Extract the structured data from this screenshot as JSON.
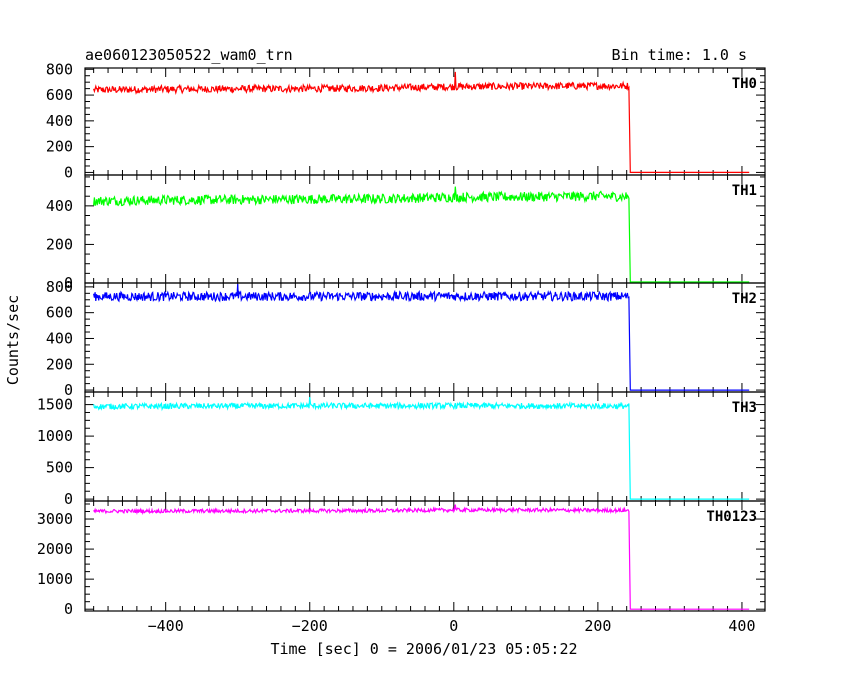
{
  "title": "ae060123050522_wam0_trn",
  "bin_time_label": "Bin time: 1.0 s",
  "xlabel": "Time [sec] 0 = 2006/01/23 05:05:22",
  "ylabel": "Counts/sec",
  "chart_data": {
    "type": "line",
    "title": "ae060123050522_wam0_trn",
    "xlabel": "Time [sec] 0 = 2006/01/23 05:05:22",
    "ylabel": "Counts/sec",
    "xlim": [
      -512,
      432
    ],
    "x_ticks": [
      -400,
      -200,
      0,
      200,
      400
    ],
    "x_tick_labels": [
      "−400",
      "−200",
      "0",
      "200",
      "400"
    ],
    "grid": false,
    "data_end_time": 243,
    "noise_seed_note": "",
    "panels": [
      {
        "name": "TH0",
        "color": "#ff0000",
        "ylim": [
          -20,
          810
        ],
        "y_ticks": [
          0,
          200,
          400,
          600,
          800
        ],
        "y_tick_labels": [
          "0",
          "200",
          "400",
          "600",
          "800"
        ],
        "series_x": [
          -500,
          -400,
          -300,
          -200,
          -100,
          0,
          100,
          200,
          243,
          245,
          300,
          410
        ],
        "series_y": [
          640,
          645,
          648,
          650,
          655,
          665,
          668,
          672,
          670,
          0,
          0,
          0
        ],
        "noise_amplitude": 28,
        "spike": {
          "x": 2,
          "y": 780
        }
      },
      {
        "name": "TH1",
        "color": "#00ff00",
        "ylim": [
          0,
          560
        ],
        "y_ticks": [
          0,
          200,
          400
        ],
        "y_tick_labels": [
          "0",
          "200",
          "400"
        ],
        "series_x": [
          -500,
          -400,
          -300,
          -200,
          -100,
          0,
          100,
          200,
          243,
          245,
          300,
          410
        ],
        "series_y": [
          425,
          430,
          432,
          435,
          437,
          445,
          447,
          450,
          448,
          0,
          0,
          0
        ],
        "noise_amplitude": 25,
        "spike": {
          "x": 2,
          "y": 500
        }
      },
      {
        "name": "TH2",
        "color": "#0000ff",
        "ylim": [
          -15,
          830
        ],
        "y_ticks": [
          0,
          200,
          400,
          600,
          800
        ],
        "y_tick_labels": [
          "0",
          "200",
          "400",
          "600",
          "800"
        ],
        "series_x": [
          -500,
          -400,
          -300,
          -200,
          -100,
          0,
          100,
          200,
          243,
          245,
          300,
          410
        ],
        "series_y": [
          725,
          725,
          726,
          726,
          727,
          728,
          727,
          727,
          726,
          0,
          0,
          0
        ],
        "noise_amplitude": 35,
        "spike": {
          "x": -300,
          "y": 830
        }
      },
      {
        "name": "TH3",
        "color": "#00ffff",
        "ylim": [
          -30,
          1700
        ],
        "y_ticks": [
          0,
          500,
          1000,
          1500
        ],
        "y_tick_labels": [
          "0",
          "500",
          "1000",
          "1500"
        ],
        "series_x": [
          -500,
          -400,
          -300,
          -200,
          -100,
          0,
          100,
          200,
          243,
          245,
          300,
          410
        ],
        "series_y": [
          1470,
          1475,
          1478,
          1480,
          1480,
          1482,
          1480,
          1478,
          1475,
          0,
          0,
          0
        ],
        "noise_amplitude": 45,
        "spike": {
          "x": -200,
          "y": 1620
        }
      },
      {
        "name": "TH0123",
        "color": "#ff00ff",
        "ylim": [
          -60,
          3600
        ],
        "y_ticks": [
          0,
          1000,
          2000,
          3000
        ],
        "y_tick_labels": [
          "0",
          "1000",
          "2000",
          "3000"
        ],
        "series_x": [
          -500,
          -400,
          -300,
          -200,
          -100,
          0,
          100,
          200,
          243,
          245,
          300,
          410
        ],
        "series_y": [
          3260,
          3265,
          3270,
          3275,
          3280,
          3300,
          3300,
          3290,
          3285,
          0,
          0,
          0
        ],
        "noise_amplitude": 60,
        "spike": {
          "x": 2,
          "y": 3480
        }
      }
    ]
  }
}
